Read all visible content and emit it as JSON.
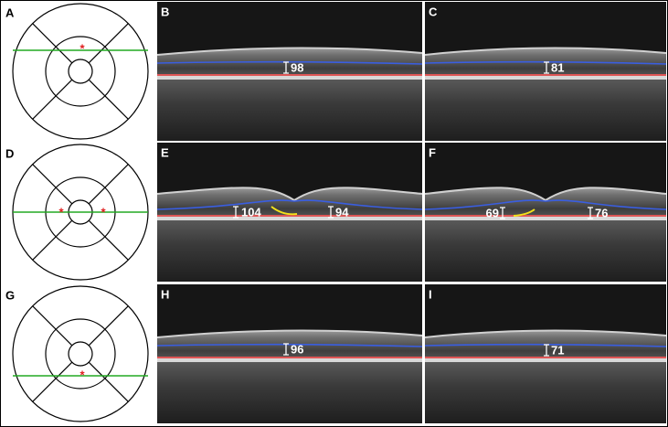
{
  "panels": [
    {
      "label": "A"
    },
    {
      "label": "B",
      "measurements": [
        98
      ]
    },
    {
      "label": "C",
      "measurements": [
        81
      ]
    },
    {
      "label": "D"
    },
    {
      "label": "E",
      "measurements": [
        104,
        94
      ]
    },
    {
      "label": "F",
      "measurements": [
        69,
        76
      ]
    },
    {
      "label": "G"
    },
    {
      "label": "H",
      "measurements": [
        96
      ]
    },
    {
      "label": "I",
      "measurements": [
        71
      ]
    }
  ]
}
